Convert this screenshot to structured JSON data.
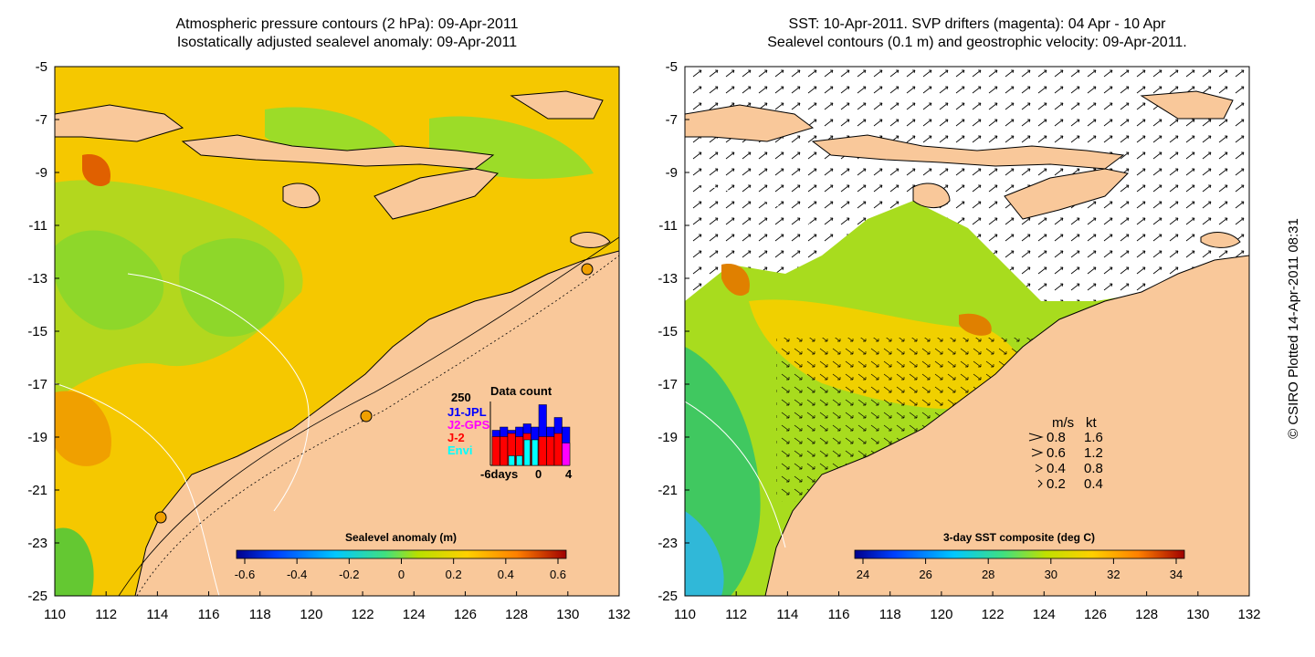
{
  "left_panel": {
    "title_line1": "Atmospheric pressure contours (2 hPa): 09-Apr-2011",
    "title_line2": "Isostatically adjusted sealevel anomaly: 09-Apr-2011",
    "y_ticks": [
      "-5",
      "-7",
      "-9",
      "-11",
      "-13",
      "-15",
      "-17",
      "-19",
      "-21",
      "-23",
      "-25"
    ],
    "x_ticks": [
      "110",
      "112",
      "114",
      "116",
      "118",
      "120",
      "122",
      "124",
      "126",
      "128",
      "130",
      "132"
    ],
    "colorbar_title": "Sealevel anomaly (m)",
    "colorbar_ticks": [
      "-0.6",
      "-0.4",
      "-0.2",
      "0",
      "0.2",
      "0.4",
      "0.6"
    ],
    "data_count": {
      "title": "Data count",
      "max_label": "250",
      "x_labels": [
        "-6days",
        "0",
        "4"
      ],
      "legend": [
        {
          "label": "J1-JPL",
          "color": "#0000ff"
        },
        {
          "label": "J2-GPS",
          "color": "#ff00ff"
        },
        {
          "label": "J-2",
          "color": "#ff0000"
        },
        {
          "label": "Envi",
          "color": "#00ffff"
        }
      ],
      "bars": [
        {
          "day": -6,
          "j1": 0.55,
          "j2": 0,
          "j2b": 0.45,
          "envi": 0
        },
        {
          "day": -5,
          "j1": 0.6,
          "j2": 0,
          "j2b": 0.45,
          "envi": 0
        },
        {
          "day": -4,
          "j1": 0.55,
          "j2": 0,
          "j2b": 0.5,
          "envi": 0.15
        },
        {
          "day": -3,
          "j1": 0.6,
          "j2": 0,
          "j2b": 0.45,
          "envi": 0.15
        },
        {
          "day": -2,
          "j1": 0.65,
          "j2": 0,
          "j2b": 0.5,
          "envi": 0.4
        },
        {
          "day": -1,
          "j1": 0.6,
          "j2": 0,
          "j2b": 0.4,
          "envi": 0.4
        },
        {
          "day": 0,
          "j1": 0.95,
          "j2": 0,
          "j2b": 0.45,
          "envi": 0
        },
        {
          "day": 1,
          "j1": 0.6,
          "j2": 0,
          "j2b": 0.45,
          "envi": 0
        },
        {
          "day": 2,
          "j1": 0.75,
          "j2": 0,
          "j2b": 0.5,
          "envi": 0
        },
        {
          "day": 3,
          "j1": 0.6,
          "j2": 0.35,
          "j2b": 0,
          "envi": 0
        }
      ]
    }
  },
  "right_panel": {
    "title_line1": "SST: 10-Apr-2011. SVP drifters (magenta): 04 Apr - 10 Apr",
    "title_line2": "Sealevel contours (0.1 m) and geostrophic velocity: 09-Apr-2011.",
    "y_ticks": [
      "-5",
      "-7",
      "-9",
      "-11",
      "-13",
      "-15",
      "-17",
      "-19",
      "-21",
      "-23",
      "-25"
    ],
    "x_ticks": [
      "110",
      "112",
      "114",
      "116",
      "118",
      "120",
      "122",
      "124",
      "126",
      "128",
      "130",
      "132"
    ],
    "colorbar_title": "3-day SST composite (deg C)",
    "colorbar_ticks": [
      "24",
      "26",
      "28",
      "30",
      "32",
      "34"
    ],
    "speed_legend": {
      "header_ms": "m/s",
      "header_kt": "kt",
      "rows": [
        {
          "ms": "0.8",
          "kt": "1.6"
        },
        {
          "ms": "0.6",
          "kt": "1.2"
        },
        {
          "ms": "0.4",
          "kt": "0.8"
        },
        {
          "ms": "0.2",
          "kt": "0.4"
        }
      ]
    }
  },
  "credit": "© CSIRO Plotted 14-Apr-2011 08:31",
  "colors": {
    "land": "#f9c89a",
    "sea_green": "#8ad832",
    "sea_yellow": "#f5c800",
    "sea_orange": "#f0a000",
    "sst_missing": "#ffffff"
  }
}
